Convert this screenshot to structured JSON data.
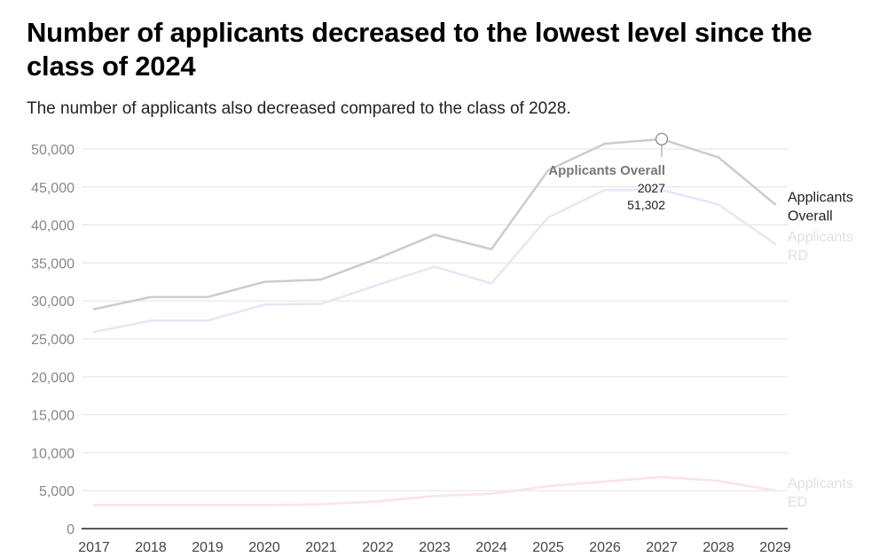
{
  "header": {
    "title": "Number of applicants decreased to the lowest level since the class of 2024",
    "subtitle": "The number of applicants also decreased compared to the class of 2028."
  },
  "chart_data": {
    "type": "line",
    "categories": [
      "2017",
      "2018",
      "2019",
      "2020",
      "2021",
      "2022",
      "2023",
      "2024",
      "2025",
      "2026",
      "2027",
      "2028",
      "2029"
    ],
    "ylim": [
      0,
      50000
    ],
    "yticks": [
      0,
      5000,
      10000,
      15000,
      20000,
      25000,
      30000,
      35000,
      40000,
      45000,
      50000
    ],
    "ytick_labels": [
      "0",
      "5,000",
      "10,000",
      "15,000",
      "20,000",
      "25,000",
      "30,000",
      "35,000",
      "40,000",
      "45,000",
      "50,000"
    ],
    "grid": true,
    "series": [
      {
        "name": "Applicants Overall",
        "label_lines": [
          "Applicants",
          "Overall"
        ],
        "color": "#cccccc",
        "label_color": "#222222",
        "values": [
          28900,
          30500,
          30500,
          32500,
          32800,
          35600,
          38700,
          36800,
          47200,
          50700,
          51302,
          48900,
          42700
        ]
      },
      {
        "name": "Applicants RD",
        "label_lines": [
          "Applicants",
          "RD"
        ],
        "color": "#e6e6f8",
        "label_color": "#e0e0e0",
        "values": [
          25900,
          27400,
          27400,
          29500,
          29600,
          32100,
          34500,
          32300,
          41000,
          44600,
          44600,
          42700,
          37500
        ]
      },
      {
        "name": "Applicants ED",
        "label_lines": [
          "Applicants",
          "ED"
        ],
        "color": "#f9e4e4",
        "label_color": "#e0e0e0",
        "values": [
          3100,
          3100,
          3100,
          3100,
          3200,
          3600,
          4300,
          4600,
          5600,
          6200,
          6800,
          6300,
          5000
        ]
      }
    ],
    "tooltip": {
      "series": "Applicants Overall",
      "category": "2027",
      "value_label": "51,302"
    }
  }
}
